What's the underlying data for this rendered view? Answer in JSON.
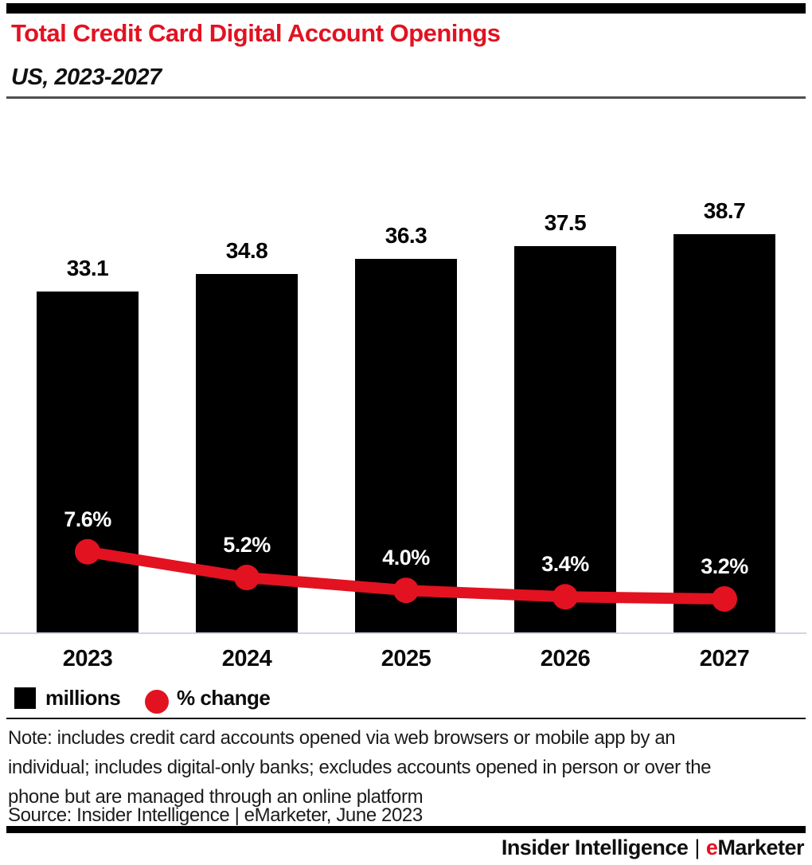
{
  "header": {
    "title": "Total Credit Card Digital Account Openings",
    "subtitle": "US, 2023-2027"
  },
  "chart_data": {
    "type": "bar",
    "title": "Total Credit Card Digital Account Openings",
    "subtitle": "US, 2023-2027",
    "categories": [
      "2023",
      "2024",
      "2025",
      "2026",
      "2027"
    ],
    "series": [
      {
        "name": "millions",
        "type": "bar",
        "color": "#000000",
        "values": [
          33.1,
          34.8,
          36.3,
          37.5,
          38.7
        ],
        "labels": [
          "33.1",
          "34.8",
          "36.3",
          "37.5",
          "38.7"
        ]
      },
      {
        "name": "% change",
        "type": "line",
        "color": "#e21221",
        "values": [
          7.6,
          5.2,
          4.0,
          3.4,
          3.2
        ],
        "labels": [
          "7.6%",
          "5.2%",
          "4.0%",
          "3.4%",
          "3.2%"
        ]
      }
    ],
    "xlabel": "",
    "ylabel": "",
    "grid": false,
    "legend_position": "bottom-left",
    "bar_value_label_position": "above-bar",
    "line_value_label_position": "above-point"
  },
  "colors": {
    "accent_red": "#e21221",
    "bar_black": "#000000",
    "axis_line": "#ccd4e8",
    "header_divider": "#4f4f4f"
  },
  "legend": {
    "items": [
      {
        "label": "millions",
        "swatch": "black-square"
      },
      {
        "label": "% change",
        "swatch": "red-circle"
      }
    ]
  },
  "note": {
    "lines": [
      "Note: includes credit card accounts opened via web browsers or mobile app by an",
      "individual; includes digital-only banks; excludes accounts opened in person or over the",
      "phone but are managed through an online platform"
    ],
    "source": "Source: Insider Intelligence | eMarketer, June 2023"
  },
  "footer": {
    "brand_left": "Insider Intelligence",
    "separator": "|",
    "brand_right_emph": "e",
    "brand_right_rest": "Marketer"
  }
}
